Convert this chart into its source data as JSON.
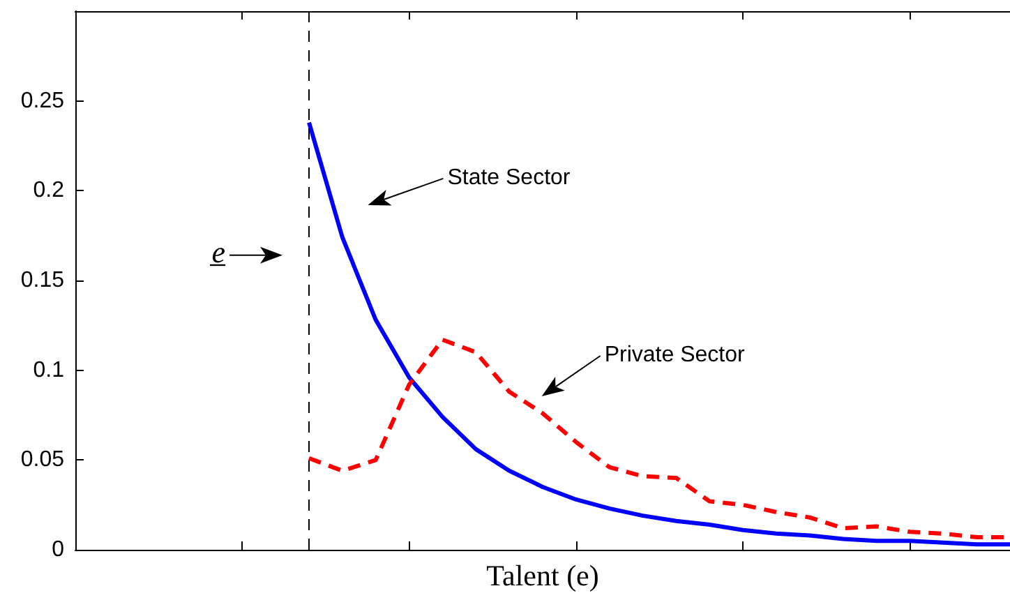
{
  "chart_data": {
    "type": "line",
    "xlabel": "Talent (e)",
    "categories": [
      null,
      null,
      null,
      null,
      null,
      null,
      null,
      null,
      null,
      null,
      null,
      null,
      null,
      null,
      null,
      null,
      null,
      null,
      null,
      null,
      null,
      null,
      null,
      null,
      null,
      null,
      null,
      null,
      null
    ],
    "series": [
      {
        "color": "#0000ff",
        "line_style": "solid",
        "values": [
          null,
          null,
          null,
          null,
          null,
          null,
          null,
          0.238,
          0.174,
          0.128,
          0.096,
          0.074,
          0.056,
          0.044,
          0.035,
          0.028,
          0.023,
          0.019,
          0.016,
          0.014,
          0.011,
          0.009,
          0.008,
          0.006,
          0.005,
          0.005,
          0.004,
          0.003,
          0.003
        ]
      },
      {
        "color": "#ff0000",
        "line_style": "dashed",
        "values": [
          null,
          null,
          null,
          null,
          null,
          null,
          null,
          0.051,
          0.044,
          0.05,
          0.092,
          0.117,
          0.11,
          0.088,
          0.076,
          0.06,
          0.046,
          0.041,
          0.04,
          0.027,
          0.025,
          0.021,
          0.018,
          0.012,
          0.013,
          0.01,
          0.009,
          0.007,
          0.007
        ]
      }
    ],
    "ylim": [
      0,
      0.3
    ],
    "yticks": [
      0,
      0.05,
      0.1,
      0.15,
      0.2,
      0.25
    ],
    "tick_labels": "y",
    "annotations": [
      "State Sector",
      "Private Sector",
      "e̲"
    ]
  }
}
